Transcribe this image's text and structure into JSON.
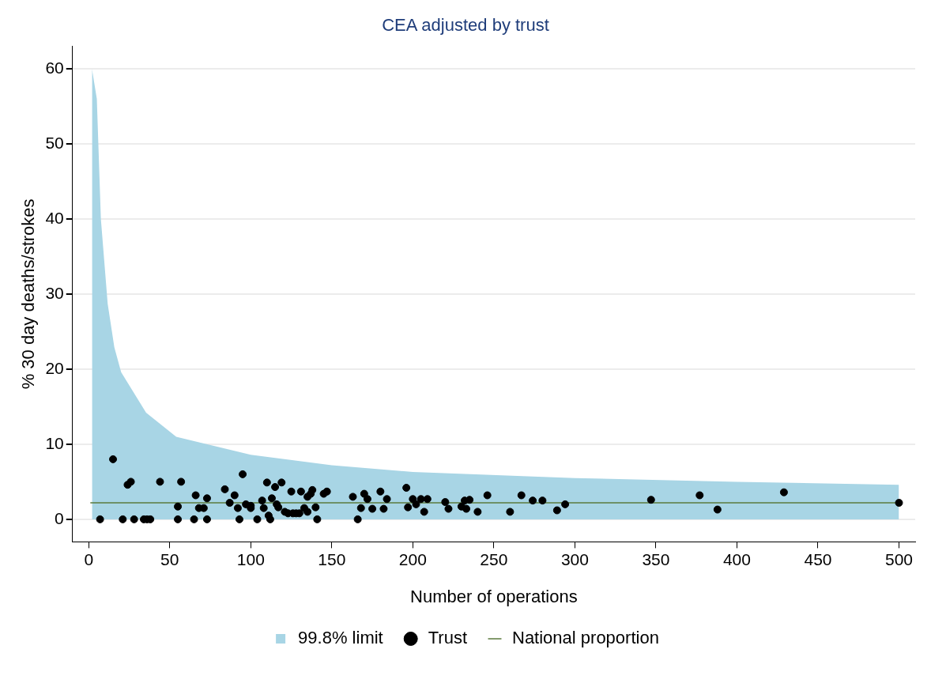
{
  "chart_data": {
    "type": "scatter",
    "title": "CEA adjusted by trust",
    "xlabel": "Number of operations",
    "ylabel": "% 30 day deaths/strokes",
    "xlim": [
      -10,
      510
    ],
    "ylim": [
      -3,
      63
    ],
    "xticks": [
      0,
      50,
      100,
      150,
      200,
      250,
      300,
      350,
      400,
      450,
      500
    ],
    "yticks": [
      0,
      10,
      20,
      30,
      40,
      50,
      60
    ],
    "grid": "y",
    "legend": "bottom",
    "series": [
      {
        "name": "99.8% limit",
        "type": "area",
        "color": "#a8d5e5",
        "marker": "none",
        "x": [
          2,
          5,
          7.5,
          11.7,
          15.8,
          20,
          35.4,
          54,
          100,
          150,
          200,
          300,
          400,
          500
        ],
        "values": [
          60,
          56,
          40,
          28.7,
          22.9,
          19.6,
          14.2,
          11,
          8.6,
          7.2,
          6.3,
          5.5,
          5,
          4.6
        ]
      },
      {
        "name": "Trust",
        "type": "scatter",
        "color": "#000000",
        "marker": "circle",
        "x": [
          7,
          15,
          21,
          24,
          26,
          28,
          34,
          36,
          38,
          44,
          55,
          55,
          57,
          65,
          66,
          68,
          71,
          73,
          73,
          84,
          87,
          90,
          92,
          93,
          95,
          97,
          100,
          100,
          104,
          107,
          108,
          110,
          111,
          112,
          113,
          115,
          116,
          117,
          119,
          121,
          123,
          125,
          126,
          128,
          130,
          131,
          133,
          135,
          135,
          137,
          138,
          140,
          141,
          145,
          147,
          163,
          166,
          168,
          170,
          172,
          175,
          180,
          182,
          184,
          196,
          197,
          200,
          202,
          205,
          207,
          209,
          220,
          222,
          230,
          232,
          233,
          235,
          240,
          246,
          260,
          267,
          274,
          280,
          289,
          294,
          347,
          377,
          388,
          429,
          500
        ],
        "values": [
          0,
          8,
          0,
          4.6,
          5,
          0,
          0,
          0,
          0,
          5,
          0,
          1.7,
          5,
          0,
          3.2,
          1.5,
          1.5,
          0,
          2.8,
          4,
          2.2,
          3.2,
          1.5,
          0,
          6,
          2,
          1.5,
          1.8,
          0,
          2.5,
          1.5,
          4.9,
          0.5,
          0,
          2.8,
          4.3,
          2,
          1.6,
          4.9,
          1,
          0.8,
          3.7,
          0.8,
          0.8,
          0.8,
          3.7,
          1.5,
          1,
          3,
          3.4,
          3.9,
          1.6,
          0,
          3.4,
          3.7,
          3,
          0,
          1.5,
          3.4,
          2.7,
          1.4,
          3.7,
          1.4,
          2.7,
          4.2,
          1.6,
          2.7,
          2,
          2.7,
          1,
          2.7,
          2.3,
          1.4,
          1.7,
          2.5,
          1.4,
          2.6,
          1,
          3.2,
          1,
          3.2,
          2.5,
          2.5,
          1.2,
          2,
          2.6,
          3.2,
          1.3,
          3.6,
          2.2
        ]
      },
      {
        "name": "National proportion",
        "type": "line",
        "color": "#5b7a3c",
        "marker": "none",
        "x": [
          1,
          500
        ],
        "values": [
          2.2,
          2.2
        ]
      }
    ]
  }
}
